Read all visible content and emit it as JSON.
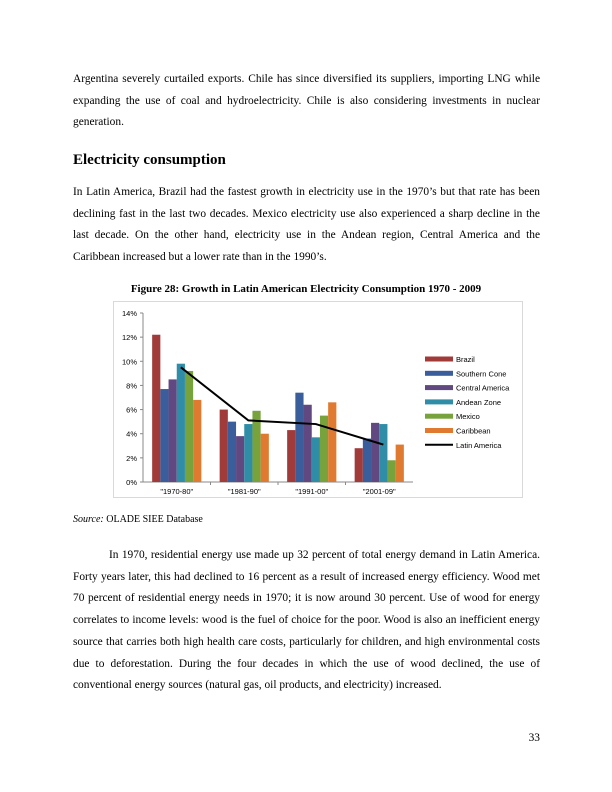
{
  "page": {
    "paragraph_1": "Argentina severely curtailed exports. Chile has since diversified its suppliers, importing LNG while expanding the use of coal and hydroelectricity. Chile is also considering investments in nuclear generation.",
    "heading": "Electricity consumption",
    "paragraph_2": "In Latin America, Brazil had the fastest growth in electricity use in the 1970’s but that rate has been declining fast in the last two decades.  Mexico electricity use also experienced a sharp decline in the last decade. On the other hand, electricity use in the Andean region, Central America and the Caribbean increased but a lower rate than in the 1990’s.",
    "figure_caption": "Figure 28: Growth in Latin American Electricity Consumption 1970 - 2009",
    "source_label": "Source:",
    "source_text": " OLADE SIEE Database",
    "paragraph_3": "In 1970, residential energy use made up 32 percent of total energy demand in Latin America. Forty years later, this had declined to 16 percent as a result of increased energy efficiency.  Wood met 70 percent of residential energy needs in 1970; it is now around 30 percent. Use of wood for energy correlates to income levels: wood is the fuel of choice for the poor.  Wood is also an inefficient energy source that carries both high health care costs, particularly for children, and high environmental costs due to deforestation. During the four decades in which the use of wood declined, the use of conventional energy sources (natural gas, oil products, and electricity) increased.",
    "page_number": "33"
  },
  "chart_data": {
    "type": "bar",
    "categories": [
      "\"1970-80\"",
      "\"1981-90\"",
      "\"1991-00\"",
      "\"2001-09\""
    ],
    "ylim": [
      0,
      14
    ],
    "yticks": [
      "0%",
      "2%",
      "4%",
      "6%",
      "8%",
      "10%",
      "12%",
      "14%"
    ],
    "legend_position": "right",
    "series": [
      {
        "name": "Brazil",
        "color": "#A03B3A",
        "values": [
          12.2,
          6.0,
          4.3,
          2.8
        ]
      },
      {
        "name": "Southern Cone",
        "color": "#3A5D9C",
        "values": [
          7.7,
          5.0,
          7.4,
          3.6
        ]
      },
      {
        "name": "Central America",
        "color": "#614880",
        "values": [
          8.5,
          3.8,
          6.4,
          4.9
        ]
      },
      {
        "name": "Andean Zone",
        "color": "#2F8DA8",
        "values": [
          9.8,
          4.8,
          3.7,
          4.8
        ]
      },
      {
        "name": "Mexico",
        "color": "#78A23C",
        "values": [
          9.2,
          5.9,
          5.5,
          1.8
        ]
      },
      {
        "name": "Caribbean",
        "color": "#E07A30",
        "values": [
          6.8,
          4.0,
          6.6,
          3.1
        ]
      }
    ],
    "line_series": {
      "name": "Latin America",
      "color": "#000000",
      "values": [
        9.5,
        5.1,
        4.8,
        3.1
      ]
    }
  }
}
